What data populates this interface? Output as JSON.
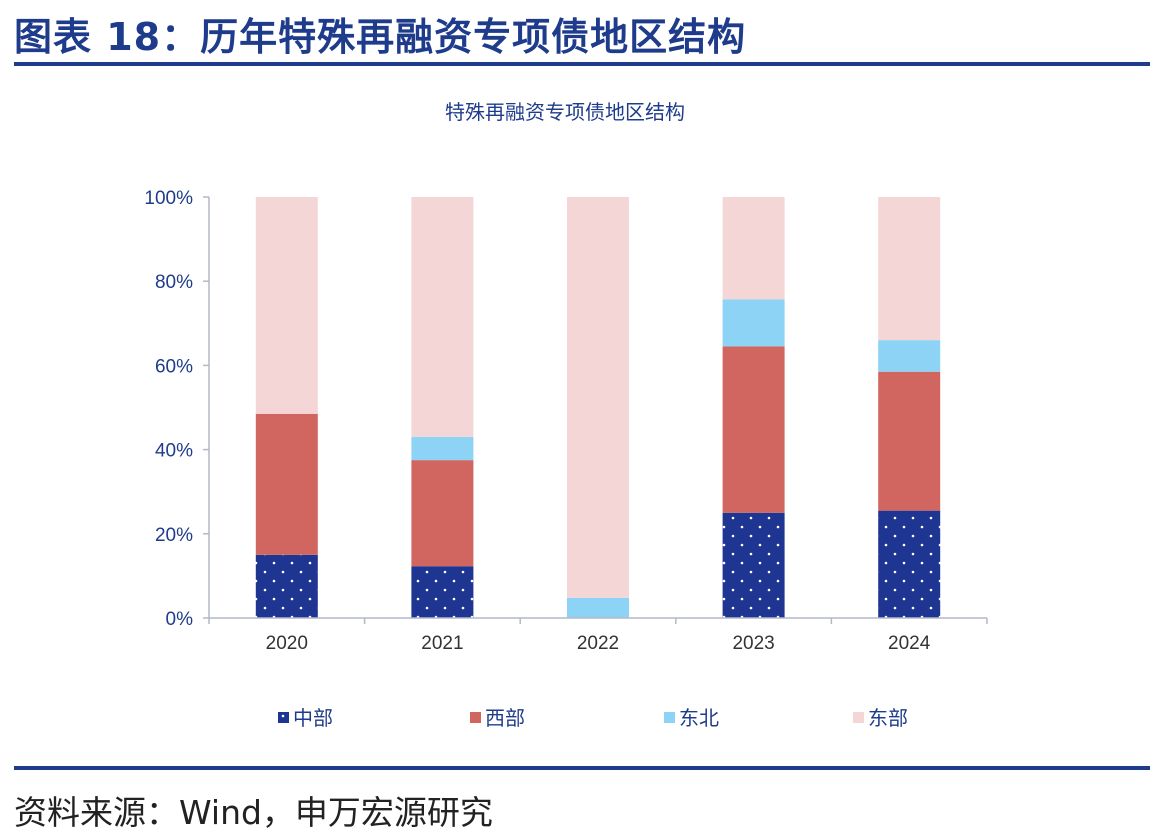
{
  "figure": {
    "title": "图表 18：历年特殊再融资专项债地区结构",
    "source": "资料来源：Wind，申万宏源研究"
  },
  "colors": {
    "brand_blue": "#1f3c8c",
    "central": "#1f3592",
    "western": "#d16661",
    "northeast": "#8cd3f5",
    "eastern": "#f5d6d6"
  },
  "chart_data": {
    "type": "bar",
    "stacked": true,
    "title": "特殊再融资专项债地区结构",
    "categories": [
      "2020",
      "2021",
      "2022",
      "2023",
      "2024"
    ],
    "series": [
      {
        "name": "中部",
        "values": [
          15,
          12.3,
          0,
          25,
          25.5
        ]
      },
      {
        "name": "西部",
        "values": [
          33.5,
          25.2,
          0,
          39.5,
          33
        ]
      },
      {
        "name": "东北",
        "values": [
          0,
          5.5,
          4.8,
          11.2,
          7.5
        ]
      },
      {
        "name": "东部",
        "values": [
          51.5,
          57,
          95.2,
          24.3,
          34
        ]
      }
    ],
    "y_ticks": [
      "0%",
      "20%",
      "40%",
      "60%",
      "80%",
      "100%"
    ],
    "ylim": [
      0,
      100
    ],
    "legend_position": "bottom"
  }
}
